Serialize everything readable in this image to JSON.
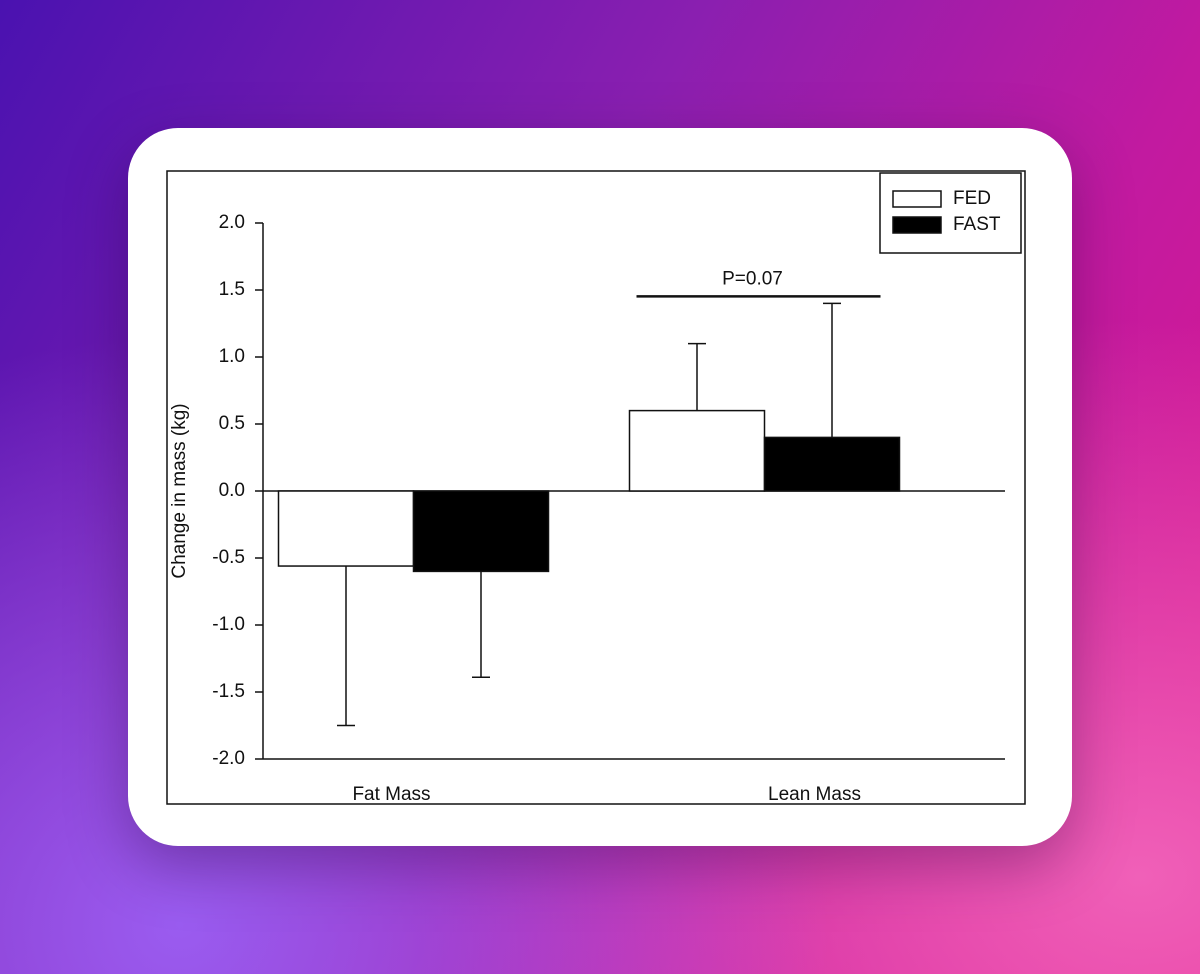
{
  "chart_data": {
    "type": "bar",
    "y_label": "Change in mass (kg)",
    "categories": [
      "Fat Mass",
      "Lean Mass"
    ],
    "series": [
      {
        "name": "FED",
        "color": "#ffffff",
        "values": [
          -0.56,
          0.6
        ],
        "errors": [
          1.19,
          0.5
        ]
      },
      {
        "name": "FAST",
        "color": "#000000",
        "values": [
          -0.6,
          0.4
        ],
        "errors": [
          0.79,
          1.0
        ]
      }
    ],
    "ylim": [
      -2,
      2
    ],
    "yticks": [
      {
        "value": -2,
        "label": "-2.0"
      },
      {
        "value": -1.5,
        "label": "-1.5"
      },
      {
        "value": -1,
        "label": "-1.0"
      },
      {
        "value": -0.5,
        "label": "-0.5"
      },
      {
        "value": 0,
        "label": "0.0"
      },
      {
        "value": 0.5,
        "label": "0.5"
      },
      {
        "value": 1,
        "label": "1.0"
      },
      {
        "value": 1.5,
        "label": "1.5"
      },
      {
        "value": 2,
        "label": "2.0"
      }
    ],
    "annotation": "P=0.07",
    "legend": "upper right"
  }
}
